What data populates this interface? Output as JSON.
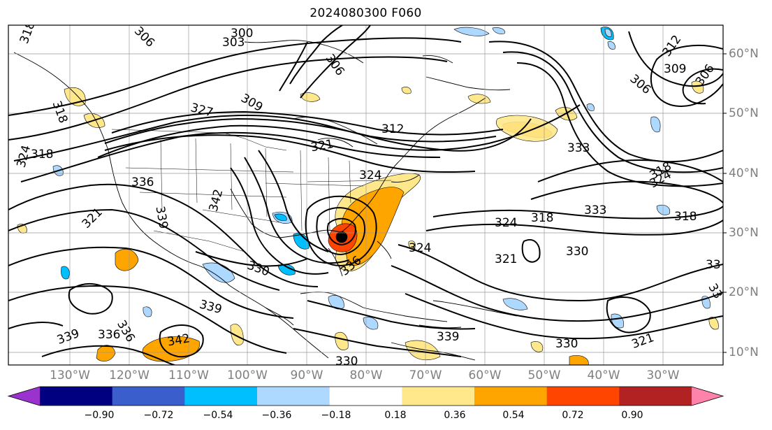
{
  "title": "2024080300 F060",
  "lat_labels": [
    "60°N",
    "50°N",
    "40°N",
    "30°N",
    "20°N",
    "10°N"
  ],
  "lon_labels": [
    "130°W",
    "120°W",
    "110°W",
    "100°W",
    "90°W",
    "80°W",
    "70°W",
    "60°W",
    "50°W",
    "40°W",
    "30°W"
  ],
  "contour_labels": [
    "318",
    "306",
    "300",
    "303",
    "306",
    "312",
    "309",
    "306",
    "306",
    "309",
    "327",
    "318",
    "324",
    "318",
    "324",
    "321",
    "336",
    "339",
    "342",
    "321",
    "312",
    "324",
    "318",
    "333",
    "333",
    "318",
    "318",
    "324",
    "321",
    "330",
    "330",
    "324",
    "336",
    "330",
    "339",
    "339",
    "342",
    "336",
    "336",
    "339",
    "330",
    "321",
    "324",
    "33",
    "33"
  ],
  "colorbar": {
    "ticks": [
      "−0.90",
      "−0.72",
      "−0.54",
      "−0.36",
      "−0.18",
      "0.18",
      "0.36",
      "0.54",
      "0.72",
      "0.90"
    ],
    "colors": [
      "#9a32cd",
      "#000080",
      "#3a5fcd",
      "#00bfff",
      "#add8ff",
      "#ffffff",
      "#ffe88c",
      "#ffa500",
      "#ff4500",
      "#b22222",
      "#ff82ab"
    ]
  },
  "colors": {
    "axis_label": "#7f7f7f",
    "frame": "#000000",
    "gridline": "#9a9a9a"
  }
}
